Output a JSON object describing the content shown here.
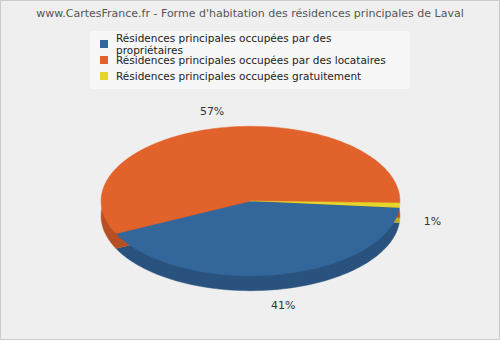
{
  "chart_data": {
    "type": "pie",
    "title": "www.CartesFrance.fr - Forme d'habitation des résidences principales de Laval",
    "categories": [
      "Résidences principales occupées par des propriétaires",
      "Résidences principales occupées par des locataires",
      "Résidences principales occupées gratuitement"
    ],
    "values": [
      41,
      57,
      1
    ],
    "value_labels": [
      "41%",
      "57%",
      "1%"
    ],
    "colors": [
      "#33679c",
      "#e2622b",
      "#e6d62a"
    ],
    "data_labels": true,
    "legend": "top"
  }
}
